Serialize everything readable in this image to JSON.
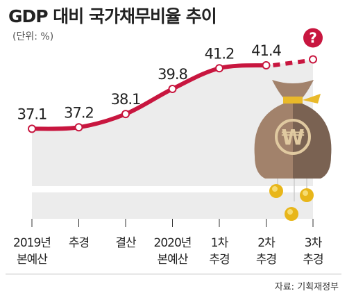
{
  "header": {
    "title": "GDP 대비 국가채무비율 추이",
    "unit": "(단위: %)"
  },
  "footer": {
    "source": "자료: 기획재정부"
  },
  "annotation": {
    "question_mark": "?",
    "icon": "money-bag-won-icon"
  },
  "colors": {
    "line": "#c8163f",
    "area": "#ececec",
    "bag_left": "#a2826b",
    "bag_right": "#7a6252",
    "coin": "#e8b61a",
    "tie": "#e9b92a"
  },
  "chart_data": {
    "type": "line",
    "title": "GDP 대비 국가채무비율 추이",
    "ylabel": "(단위: %)",
    "categories": [
      [
        "2019년",
        "본예산"
      ],
      [
        "추경"
      ],
      [
        "결산"
      ],
      [
        "2020년",
        "본예산"
      ],
      [
        "1차",
        "추경"
      ],
      [
        "2차",
        "추경"
      ],
      [
        "3차",
        "추경"
      ]
    ],
    "values": [
      37.1,
      37.2,
      38.1,
      39.8,
      41.2,
      41.4,
      null
    ],
    "value_labels": [
      "37.1",
      "37.2",
      "38.1",
      "39.8",
      "41.2",
      "41.4",
      "?"
    ],
    "projected_segment": "dashed from 2차 추경 to 3차 추경",
    "ylim": [
      31,
      43
    ],
    "grid": false,
    "legend": "none"
  }
}
